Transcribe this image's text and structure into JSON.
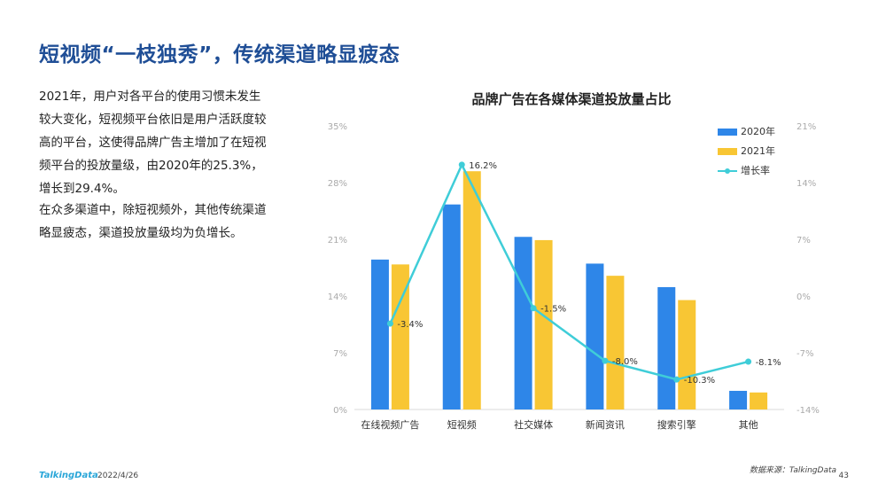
{
  "page": {
    "title": "短视频“一枝独秀”，传统渠道略显疲态",
    "paragraph1": "2021年，用户对各平台的使用习惯未发生较大变化，短视频平台依旧是用户活跃度较高的平台，这使得品牌广告主增加了在短视频平台的投放量级，由2020年的25.3%，增长到29.4%。",
    "paragraph2": "在众多渠道中，除短视频外，其他传统渠道略显疲态，渠道投放量级均为负增长。",
    "source": "数据来源：TalkingData",
    "logo": "TalkingData",
    "date": "2022/4/26",
    "page_number": "43"
  },
  "colors": {
    "title": "#1f4e96",
    "series_2020": "#2e86e8",
    "series_2021": "#f8c634",
    "growth_line": "#3fcdd8"
  },
  "chart_data": {
    "type": "bar",
    "title": "品牌广告在各媒体渠道投放量占比",
    "categories": [
      "在线视频广告",
      "短视频",
      "社交媒体",
      "新闻资讯",
      "搜索引擎",
      "其他"
    ],
    "series": [
      {
        "name": "2020年",
        "type": "bar",
        "axis": "left",
        "values": [
          18.5,
          25.3,
          21.3,
          18.0,
          15.1,
          2.3
        ]
      },
      {
        "name": "2021年",
        "type": "bar",
        "axis": "left",
        "values": [
          17.9,
          29.4,
          20.9,
          16.5,
          13.5,
          2.1
        ]
      },
      {
        "name": "增长率",
        "type": "line",
        "axis": "right",
        "values": [
          -3.4,
          16.2,
          -1.5,
          -8.0,
          -10.3,
          -8.1
        ],
        "labels": [
          "-3.4%",
          "16.2%",
          "-1.5%",
          "-8.0%",
          "-10.3%",
          "-8.1%"
        ]
      }
    ],
    "y_left": {
      "min": 0,
      "max": 35,
      "ticks": [
        0,
        7,
        14,
        21,
        28,
        35
      ],
      "tick_labels": [
        "0%",
        "7%",
        "14%",
        "21%",
        "28%",
        "35%"
      ]
    },
    "y_right": {
      "min": -14,
      "max": 21,
      "ticks": [
        -14,
        -7,
        0,
        7,
        14,
        21
      ],
      "tick_labels": [
        "-14%",
        "-7%",
        "0%",
        "7%",
        "14%",
        "21%"
      ]
    },
    "legend_position": "top-right",
    "grid": false
  }
}
